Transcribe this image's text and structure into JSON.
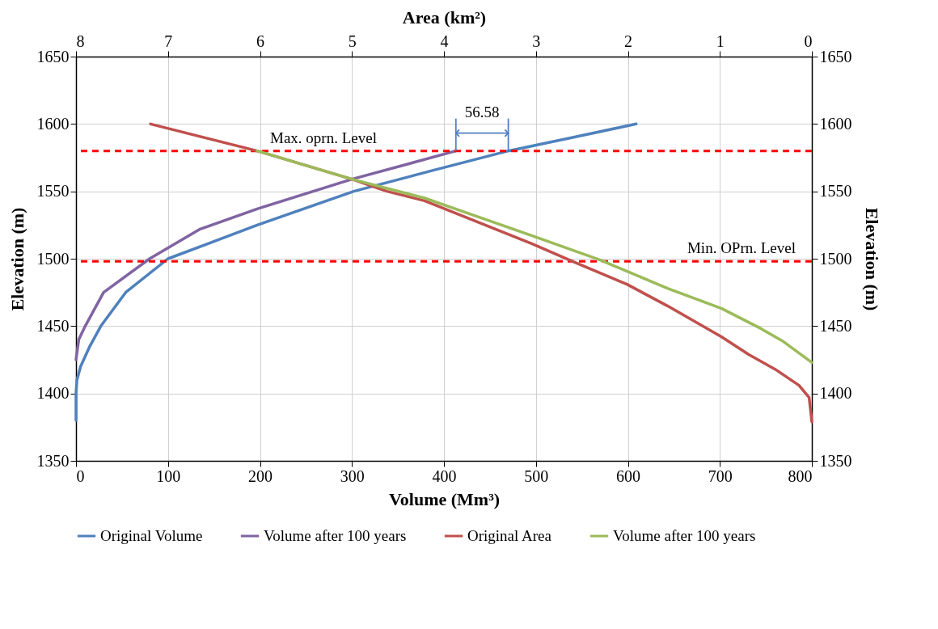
{
  "chart_data": {
    "type": "line",
    "xlabel": "Volume (Mm³)",
    "x2label": "Area (km²)",
    "ylabel": "Elevation (m)",
    "y2label": "Elevation (m)",
    "xlim": [
      0,
      800
    ],
    "xticks": [
      0,
      100,
      200,
      300,
      400,
      500,
      600,
      700,
      800
    ],
    "x2lim": [
      8,
      0
    ],
    "x2ticks": [
      8,
      7,
      6,
      5,
      4,
      3,
      2,
      1,
      0
    ],
    "ylim": [
      1350,
      1650
    ],
    "yticks": [
      1350,
      1400,
      1450,
      1500,
      1550,
      1600,
      1650
    ],
    "y2lim": [
      1350,
      1650
    ],
    "y2ticks": [
      1350,
      1400,
      1450,
      1500,
      1550,
      1600,
      1650
    ],
    "grid": true,
    "legend": "bottom",
    "marker": "none",
    "line_style": "solid",
    "series": [
      {
        "name": "Original Volume",
        "color": "#4f81bd",
        "x": [
          0,
          0,
          1,
          5,
          15,
          27,
          54,
          100,
          197,
          302,
          385,
          470,
          540,
          609
        ],
        "values": [
          1380,
          1400,
          1410,
          1420,
          1435,
          1450,
          1475,
          1500,
          1525,
          1550,
          1565,
          1580,
          1590,
          1600
        ]
      },
      {
        "name": "Volume after 100 years",
        "color": "#8064a2",
        "x": [
          0,
          3,
          10,
          30,
          80,
          135,
          197,
          300,
          413
        ],
        "values": [
          1425,
          1440,
          1450,
          1475,
          1500,
          1522,
          1537,
          1559,
          1580
        ]
      },
      {
        "name": "Original Area",
        "color": "#c0504d",
        "axis": "x2",
        "x": [
          7.19,
          6.03,
          5.0,
          4.62,
          4.21,
          3.04,
          2.6,
          2.01,
          1.57,
          0.98,
          0.69,
          0.4,
          0.14,
          0.03,
          0
        ],
        "values": [
          1600,
          1580,
          1559,
          1550,
          1543,
          1511,
          1498,
          1481,
          1465,
          1442,
          1429,
          1418,
          1406,
          1397,
          1379
        ]
      },
      {
        "name": "Volume after 100 years",
        "color": "#9bbb59",
        "axis": "x2",
        "x": [
          6.03,
          5.0,
          4.21,
          3.04,
          2.3,
          1.57,
          0.98,
          0.55,
          0.32,
          0
        ],
        "values": [
          1580,
          1559,
          1545,
          1517,
          1499,
          1478,
          1463,
          1448,
          1439,
          1423
        ]
      }
    ],
    "ref_lines": [
      {
        "axis": "y",
        "value": 1580,
        "label": "Max. oprn. Level",
        "color": "#ff0000",
        "line_style": "dashed"
      },
      {
        "axis": "y",
        "value": 1498,
        "label": "Min. OPrn. Level",
        "color": "#ff0000",
        "line_style": "dashed"
      }
    ],
    "annotations": [
      {
        "text": "56.58",
        "x": 441.5,
        "y": 1580
      }
    ]
  }
}
